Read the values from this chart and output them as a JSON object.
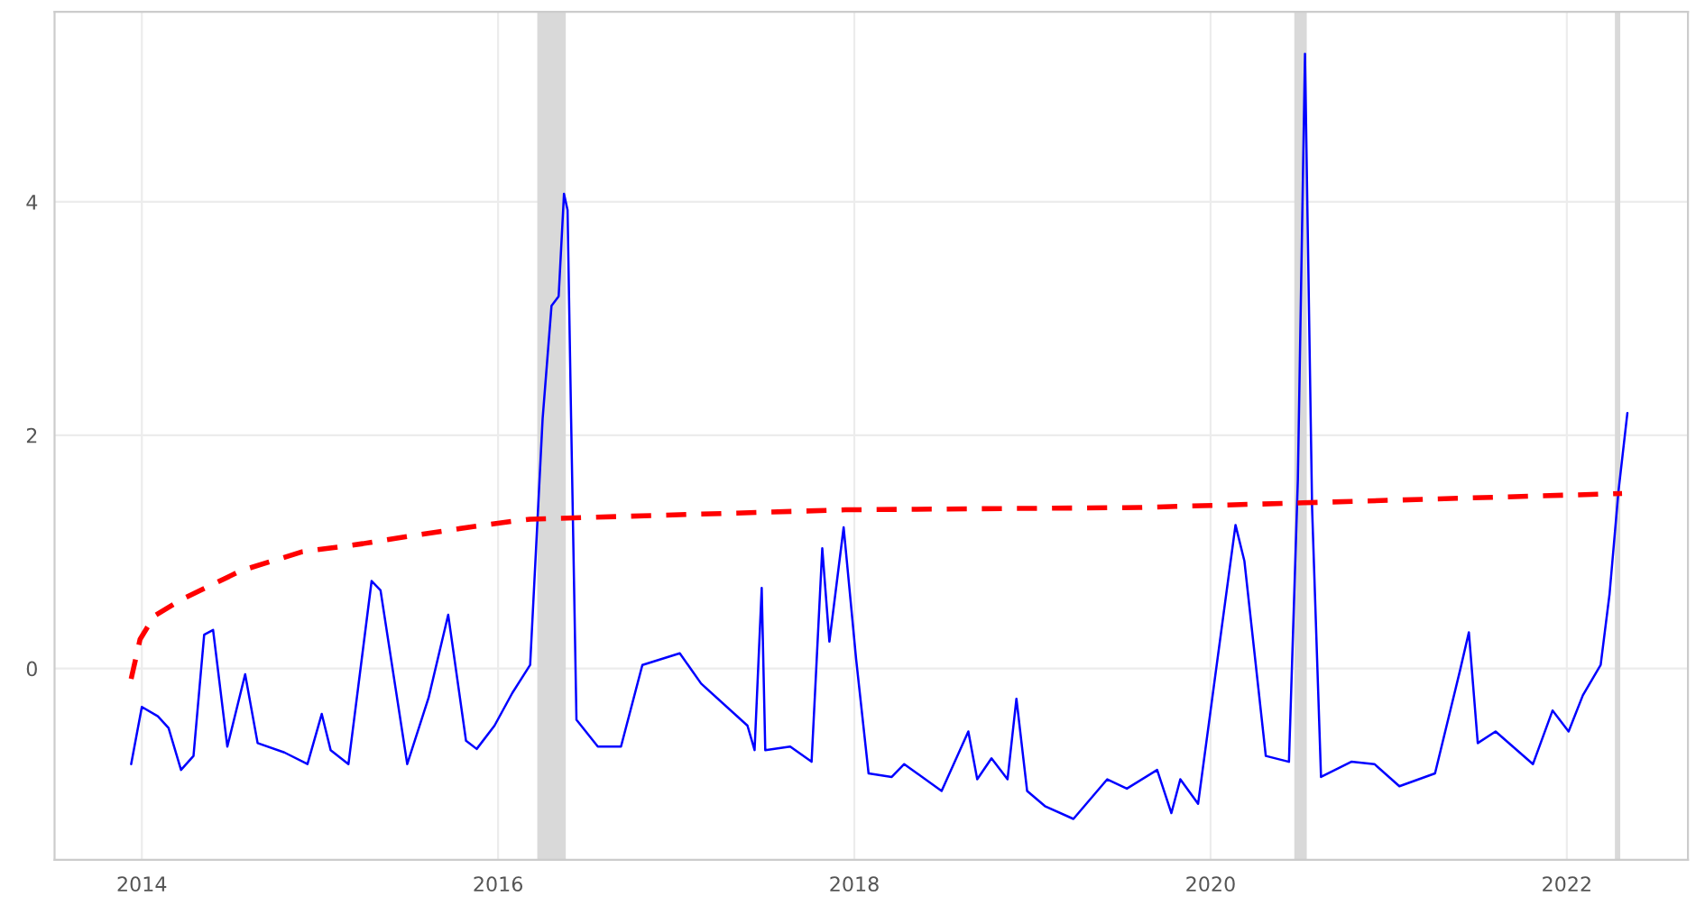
{
  "chart_data": {
    "type": "line",
    "xlim": [
      2013.51,
      2022.68
    ],
    "xticks": [
      2014,
      2016,
      2018,
      2020,
      2022
    ],
    "ylim": [
      -1.64,
      5.63
    ],
    "yticks": [
      0,
      2,
      4
    ],
    "grid": true,
    "bands": [
      {
        "axis": "x",
        "from": 2016.22,
        "to": 2016.38,
        "color": "#d9d9d9"
      },
      {
        "axis": "x",
        "from": 2020.47,
        "to": 2020.54,
        "color": "#d9d9d9"
      },
      {
        "axis": "x",
        "from": 2022.27,
        "to": 2022.3,
        "color": "#d9d9d9"
      }
    ],
    "series": [
      {
        "color": "#0000ff",
        "line_style": "solid",
        "x": [
          2013.94,
          2014.0,
          2014.09,
          2014.15,
          2014.22,
          2014.29,
          2014.35,
          2014.4,
          2014.48,
          2014.58,
          2014.65,
          2014.8,
          2014.93,
          2015.01,
          2015.06,
          2015.16,
          2015.29,
          2015.34,
          2015.49,
          2015.61,
          2015.72,
          2015.82,
          2015.88,
          2015.98,
          2016.08,
          2016.18,
          2016.25,
          2016.3,
          2016.34,
          2016.37,
          2016.39,
          2016.41,
          2016.44,
          2016.56,
          2016.69,
          2016.81,
          2017.02,
          2017.14,
          2017.4,
          2017.44,
          2017.48,
          2017.5,
          2017.64,
          2017.76,
          2017.82,
          2017.86,
          2017.94,
          2018.01,
          2018.08,
          2018.21,
          2018.28,
          2018.49,
          2018.64,
          2018.69,
          2018.77,
          2018.86,
          2018.91,
          2018.97,
          2019.07,
          2019.23,
          2019.42,
          2019.53,
          2019.7,
          2019.78,
          2019.83,
          2019.93,
          2020.03,
          2020.14,
          2020.19,
          2020.31,
          2020.44,
          2020.49,
          2020.53,
          2020.57,
          2020.62,
          2020.79,
          2020.92,
          2021.06,
          2021.26,
          2021.4,
          2021.45,
          2021.5,
          2021.6,
          2021.81,
          2021.92,
          2022.01,
          2022.09,
          2022.19,
          2022.24,
          2022.29,
          2022.34
        ],
        "values": [
          -0.82,
          -0.33,
          -0.41,
          -0.51,
          -0.87,
          -0.75,
          0.29,
          0.33,
          -0.67,
          -0.05,
          -0.64,
          -0.72,
          -0.82,
          -0.39,
          -0.7,
          -0.82,
          0.75,
          0.67,
          -0.82,
          -0.25,
          0.46,
          -0.62,
          -0.69,
          -0.49,
          -0.21,
          0.03,
          2.14,
          3.11,
          3.19,
          4.07,
          3.93,
          2.14,
          -0.44,
          -0.67,
          -0.67,
          0.03,
          0.13,
          -0.13,
          -0.49,
          -0.7,
          0.69,
          -0.7,
          -0.67,
          -0.8,
          1.03,
          0.23,
          1.21,
          0.08,
          -0.9,
          -0.93,
          -0.82,
          -1.05,
          -0.54,
          -0.95,
          -0.77,
          -0.95,
          -0.26,
          -1.05,
          -1.18,
          -1.29,
          -0.95,
          -1.03,
          -0.87,
          -1.24,
          -0.95,
          -1.16,
          -0.02,
          1.23,
          0.92,
          -0.75,
          -0.8,
          1.62,
          5.27,
          1.37,
          -0.93,
          -0.8,
          -0.82,
          -1.01,
          -0.9,
          -0.02,
          0.31,
          -0.64,
          -0.54,
          -0.82,
          -0.36,
          -0.54,
          -0.23,
          0.03,
          0.64,
          1.52,
          2.19
        ]
      },
      {
        "color": "#ff0000",
        "line_style": "dashed",
        "x": [
          2013.94,
          2013.99,
          2014.07,
          2014.22,
          2014.56,
          2014.9,
          2015.24,
          2015.57,
          2015.92,
          2016.18,
          2017.95,
          2019.6,
          2020.52,
          2022.31
        ],
        "values": [
          -0.09,
          0.25,
          0.45,
          0.59,
          0.84,
          1.0,
          1.07,
          1.15,
          1.23,
          1.28,
          1.36,
          1.38,
          1.42,
          1.5
        ]
      }
    ]
  }
}
